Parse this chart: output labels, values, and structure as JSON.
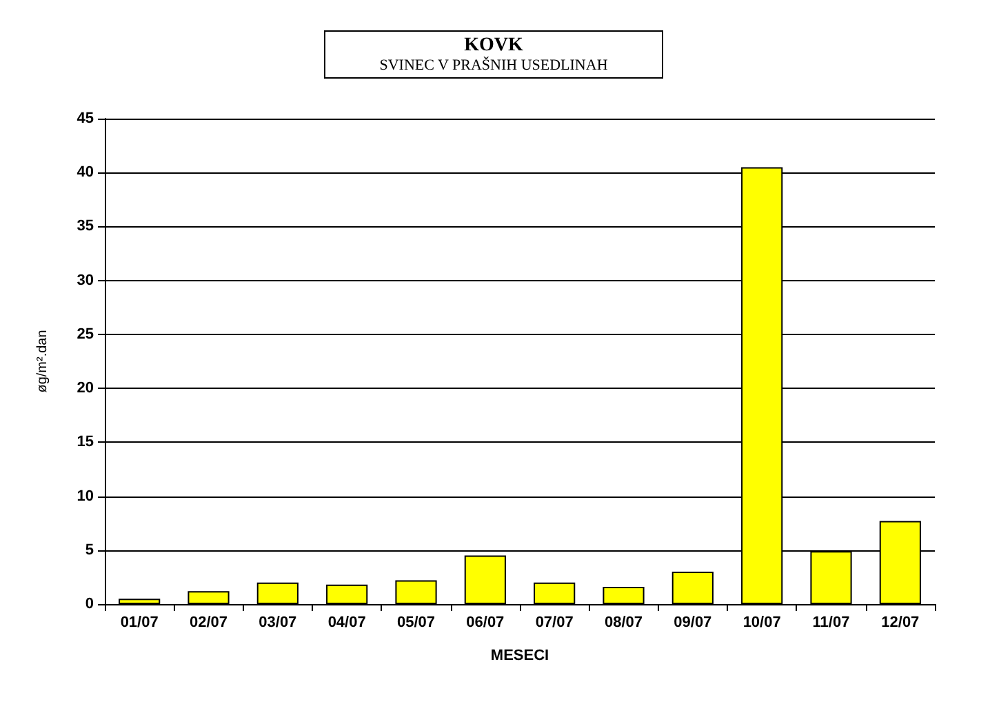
{
  "chart_data": {
    "type": "bar",
    "title": "KOVK",
    "subtitle": "SVINEC V PRAŠNIH USEDLINAH",
    "xlabel": "MESECI",
    "ylabel": "øg/m².dan",
    "categories": [
      "01/07",
      "02/07",
      "03/07",
      "04/07",
      "05/07",
      "06/07",
      "07/07",
      "08/07",
      "09/07",
      "10/07",
      "11/07",
      "12/07"
    ],
    "values": [
      0.5,
      1.2,
      2.0,
      1.8,
      2.2,
      4.5,
      2.0,
      1.6,
      3.0,
      40.5,
      4.9,
      7.7
    ],
    "color": "#ffff00",
    "ylim": [
      0,
      45
    ],
    "yticks": [
      0,
      5,
      10,
      15,
      20,
      25,
      30,
      35,
      40,
      45
    ],
    "grid": true
  }
}
